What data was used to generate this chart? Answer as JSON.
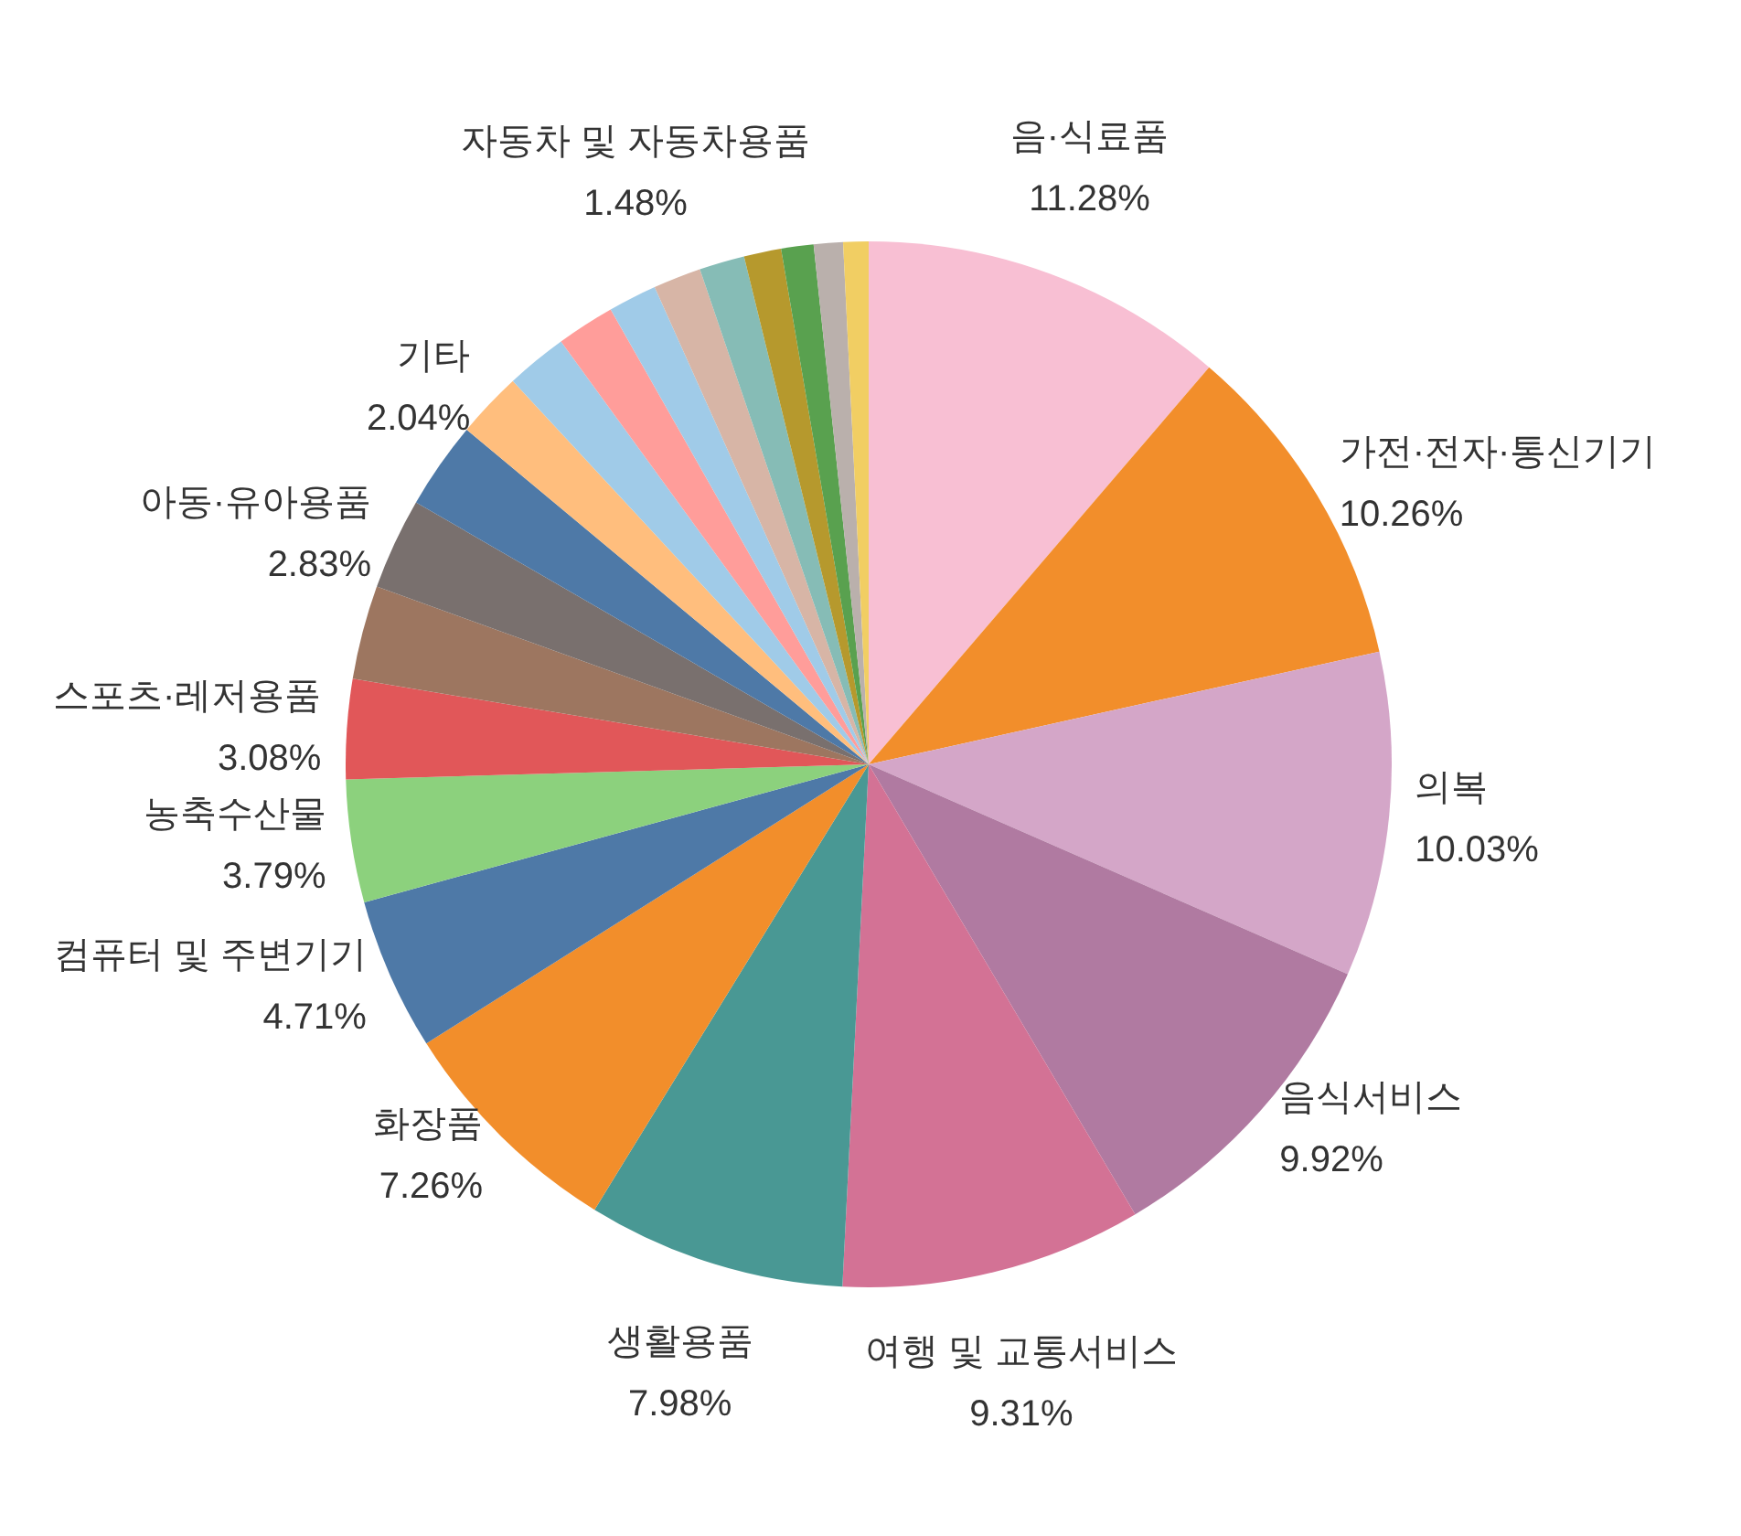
{
  "chart_data": {
    "type": "pie",
    "categories": [
      "음·식료품",
      "가전·전자·통신기기",
      "의복",
      "음식서비스",
      "여행 및 교통서비스",
      "생활용품",
      "화장품",
      "컴퓨터 및 주변기기",
      "농축수산물",
      "스포츠·레저용품",
      null,
      "아동·유아용품",
      null,
      "기타",
      null,
      null,
      null,
      "자동차 및 자동차용품",
      null,
      null,
      null,
      null,
      null
    ],
    "values": [
      11.28,
      10.26,
      10.03,
      9.92,
      9.31,
      7.98,
      7.26,
      4.71,
      3.79,
      3.08,
      2.9,
      2.83,
      2.7,
      2.04,
      1.9,
      1.8,
      1.5,
      1.48,
      1.4,
      1.15,
      1.0,
      0.9,
      0.78
    ],
    "value_labels": [
      "11.28%",
      "10.26%",
      "10.03%",
      "9.92%",
      "9.31%",
      "7.98%",
      "7.26%",
      "4.71%",
      "3.79%",
      "3.08%",
      null,
      "2.83%",
      null,
      "2.04%",
      null,
      null,
      null,
      "1.48%",
      null,
      null,
      null,
      null,
      null
    ],
    "colors": [
      "#f8bfd3",
      "#f28e2b",
      "#d4a6c8",
      "#b07aa1",
      "#d37295",
      "#499894",
      "#f28e2b",
      "#4e79a7",
      "#8cd17d",
      "#e15759",
      "#9d7660",
      "#79706e",
      "#4e79a7",
      "#ffbe7d",
      "#a0cbe8",
      "#ff9d9a",
      "#a0cbe8",
      "#d7b5a6",
      "#86bcb6",
      "#b6992d",
      "#59a14f",
      "#bab0ac",
      "#f1ce63"
    ],
    "legend": false
  }
}
